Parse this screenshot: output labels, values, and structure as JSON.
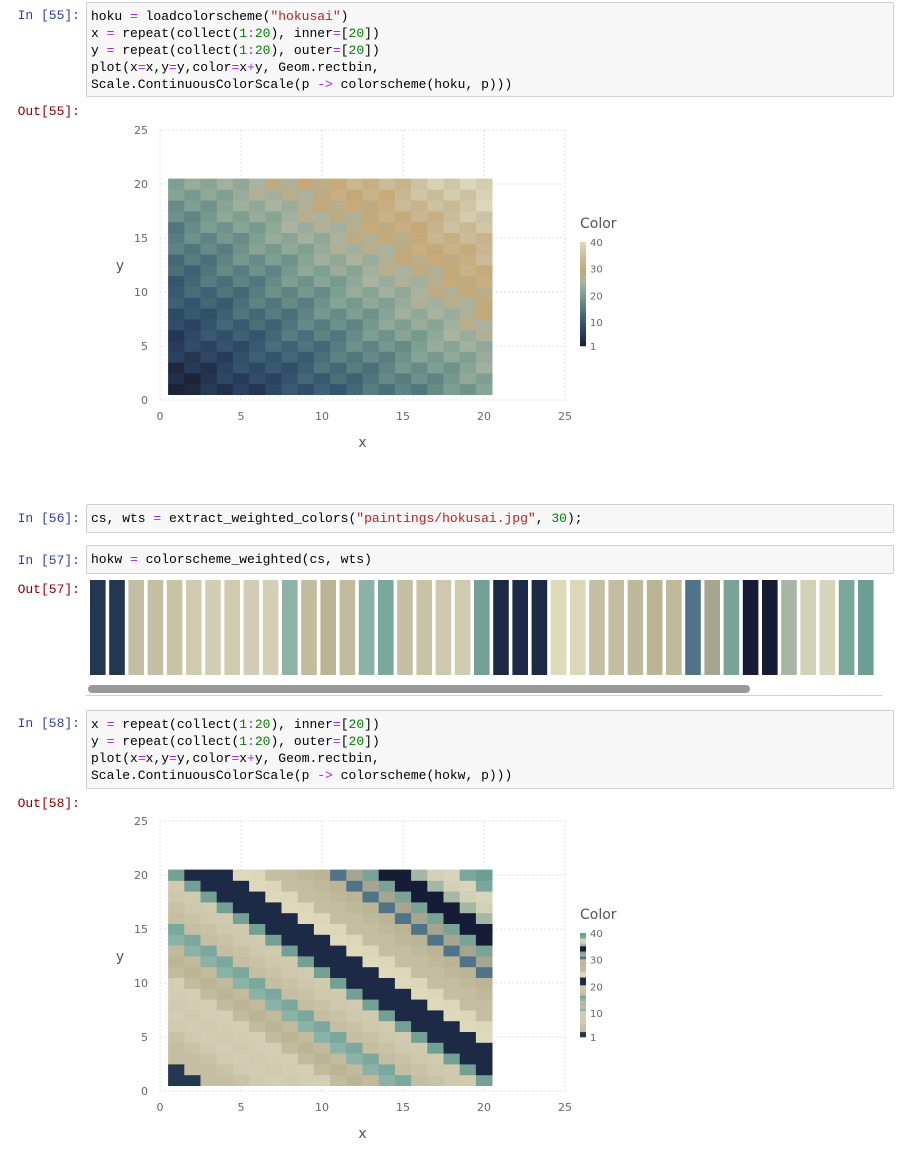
{
  "cells": [
    {
      "prompt": "In [55]:",
      "out_prompt": "Out[55]:",
      "lines": [
        [
          [
            "t",
            "hoku "
          ],
          [
            "o",
            "="
          ],
          [
            "t",
            " loadcolorscheme("
          ],
          [
            "s",
            "\"hokusai\""
          ],
          [
            "t",
            ")"
          ]
        ],
        [
          [
            "t",
            "x "
          ],
          [
            "o",
            "="
          ],
          [
            "t",
            " repeat(collect("
          ],
          [
            "n",
            "1"
          ],
          [
            "o",
            ":"
          ],
          [
            "n",
            "20"
          ],
          [
            "t",
            "), inner"
          ],
          [
            "o",
            "="
          ],
          [
            "t",
            "["
          ],
          [
            "n",
            "20"
          ],
          [
            "t",
            "])"
          ]
        ],
        [
          [
            "t",
            "y "
          ],
          [
            "o",
            "="
          ],
          [
            "t",
            " repeat(collect("
          ],
          [
            "n",
            "1"
          ],
          [
            "o",
            ":"
          ],
          [
            "n",
            "20"
          ],
          [
            "t",
            "), outer"
          ],
          [
            "o",
            "="
          ],
          [
            "t",
            "["
          ],
          [
            "n",
            "20"
          ],
          [
            "t",
            "])"
          ]
        ],
        [
          [
            "t",
            "plot(x"
          ],
          [
            "o",
            "="
          ],
          [
            "t",
            "x,y"
          ],
          [
            "o",
            "="
          ],
          [
            "t",
            "y,color"
          ],
          [
            "o",
            "="
          ],
          [
            "t",
            "x"
          ],
          [
            "o",
            "+"
          ],
          [
            "t",
            "y, Geom.rectbin,"
          ]
        ],
        [
          [
            "t",
            "Scale.ContinuousColorScale(p "
          ],
          [
            "o",
            "->"
          ],
          [
            "t",
            " colorscheme(hoku, p)))"
          ]
        ]
      ]
    },
    {
      "prompt": "In [56]:",
      "lines": [
        [
          [
            "t",
            "cs, wts "
          ],
          [
            "o",
            "="
          ],
          [
            "t",
            " extract_weighted_colors("
          ],
          [
            "s",
            "\"paintings/hokusai.jpg\""
          ],
          [
            "t",
            ", "
          ],
          [
            "n",
            "30"
          ],
          [
            "t",
            ");"
          ]
        ]
      ]
    },
    {
      "prompt": "In [57]:",
      "out_prompt": "Out[57]:",
      "lines": [
        [
          [
            "t",
            "hokw "
          ],
          [
            "o",
            "="
          ],
          [
            "t",
            " colorscheme_weighted(cs, wts)"
          ]
        ]
      ]
    },
    {
      "prompt": "In [58]:",
      "out_prompt": "Out[58]:",
      "lines": [
        [
          [
            "t",
            "x "
          ],
          [
            "o",
            "="
          ],
          [
            "t",
            " repeat(collect("
          ],
          [
            "n",
            "1"
          ],
          [
            "o",
            ":"
          ],
          [
            "n",
            "20"
          ],
          [
            "t",
            "), inner"
          ],
          [
            "o",
            "="
          ],
          [
            "t",
            "["
          ],
          [
            "n",
            "20"
          ],
          [
            "t",
            "])"
          ]
        ],
        [
          [
            "t",
            "y "
          ],
          [
            "o",
            "="
          ],
          [
            "t",
            " repeat(collect("
          ],
          [
            "n",
            "1"
          ],
          [
            "o",
            ":"
          ],
          [
            "n",
            "20"
          ],
          [
            "t",
            "), outer"
          ],
          [
            "o",
            "="
          ],
          [
            "t",
            "["
          ],
          [
            "n",
            "20"
          ],
          [
            "t",
            "])"
          ]
        ],
        [
          [
            "t",
            "plot(x"
          ],
          [
            "o",
            "="
          ],
          [
            "t",
            "x,y"
          ],
          [
            "o",
            "="
          ],
          [
            "t",
            "y,color"
          ],
          [
            "o",
            "="
          ],
          [
            "t",
            "x"
          ],
          [
            "o",
            "+"
          ],
          [
            "t",
            "y, Geom.rectbin,"
          ]
        ],
        [
          [
            "t",
            "Scale.ContinuousColorScale(p "
          ],
          [
            "o",
            "->"
          ],
          [
            "t",
            " colorscheme(hokw, p)))"
          ]
        ]
      ]
    }
  ],
  "plot_axis": {
    "xlabel": "x",
    "ylabel": "y",
    "xticks": [
      "0",
      "5",
      "10",
      "15",
      "20",
      "25"
    ],
    "yticks": [
      "0",
      "5",
      "10",
      "15",
      "20",
      "25"
    ],
    "legend_title": "Color",
    "legend_ticks": [
      "1",
      "10",
      "20",
      "30",
      "40"
    ]
  },
  "chart_data": [
    {
      "type": "heatmap",
      "x": [
        1,
        20
      ],
      "y": [
        1,
        20
      ],
      "value": "x + y",
      "xlim": [
        0,
        25
      ],
      "ylim": [
        0,
        25
      ],
      "color_range": [
        1,
        40
      ],
      "xlabel": "x",
      "ylabel": "y",
      "legend_title": "Color",
      "grid": true,
      "legend_placement": "right",
      "color_stops": [
        "#1b2337",
        "#2a4060",
        "#3a5d72",
        "#5a7e80",
        "#7ea092",
        "#a9b3a0",
        "#c7a874",
        "#c9bd9d",
        "#dcd7bb"
      ]
    },
    {
      "type": "heatmap",
      "x": [
        1,
        20
      ],
      "y": [
        1,
        20
      ],
      "value": "x + y",
      "xlim": [
        0,
        25
      ],
      "ylim": [
        0,
        25
      ],
      "color_range": [
        1,
        40
      ],
      "xlabel": "x",
      "ylabel": "y",
      "legend_title": "Color",
      "grid": true,
      "legend_placement": "right"
    }
  ],
  "swatches": [
    "#233750",
    "#233750",
    "#c5bea2",
    "#c5bea2",
    "#c9c3a6",
    "#cfcab0",
    "#d2cdb3",
    "#d0caae",
    "#d2cdb4",
    "#d3ceb4",
    "#8fb2a6",
    "#c2bb9e",
    "#bbb596",
    "#c1ba9c",
    "#8ab2a6",
    "#7aa89c",
    "#c5bea2",
    "#c9c3a6",
    "#cec9ae",
    "#d0caae",
    "#72a095",
    "#1c2a45",
    "#1c2a45",
    "#1c2a45",
    "#dfd9bc",
    "#ddd7ba",
    "#c5bea2",
    "#c4bda1",
    "#bfb99c",
    "#bbb595",
    "#c0ba9c",
    "#4f748a",
    "#a7a590",
    "#7aa397",
    "#161c35",
    "#161c35",
    "#a7b7a5",
    "#d3d1b5",
    "#d6d4ba",
    "#7aa79c",
    "#6d9e94"
  ],
  "colors": {
    "grid": "#d9d9d9",
    "axis_text": "#666666",
    "label_text": "#555555"
  }
}
